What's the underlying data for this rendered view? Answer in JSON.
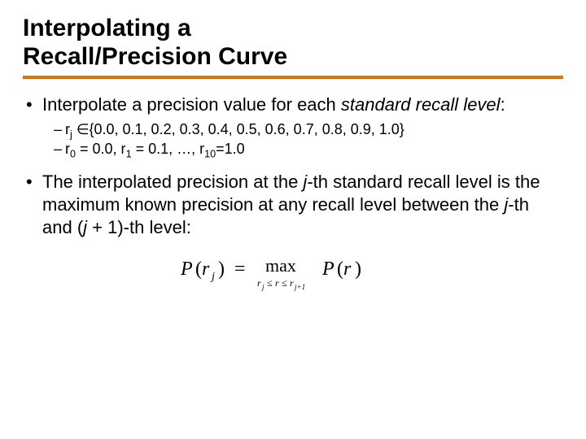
{
  "title_line1": "Interpolating a",
  "title_line2": "Recall/Precision Curve",
  "accent_color": "#e07a00",
  "bullet1_pre": "Interpolate a precision value for each ",
  "bullet1_em": "standard recall level",
  "bullet1_post": ":",
  "sub1_r": "r",
  "sub1_j": "j",
  "sub1_in": " ∈",
  "sub1_set": "{0.0, 0.1, 0.2, 0.3, 0.4, 0.5, 0.6, 0.7, 0.8, 0.9, 1.0}",
  "sub2_r0": "r",
  "sub2_0": "0",
  "sub2_eq0": " = 0.0, r",
  "sub2_1": "1",
  "sub2_mid": " = 0.1, …, r",
  "sub2_10": "10",
  "sub2_end": "=1.0",
  "bullet2_a": "The interpolated precision at the ",
  "bullet2_j": "j",
  "bullet2_b": "-th standard recall level is the maximum known precision at any recall level between the ",
  "bullet2_j2": "j",
  "bullet2_c": "-th and (",
  "bullet2_j3": "j",
  "bullet2_d": " + 1)-th level:",
  "formula": {
    "P": "P",
    "open": "(",
    "r": "r",
    "j": "j",
    "close": ")",
    "eq": "=",
    "max": "max",
    "cond_rj": "r",
    "cond_j": "j",
    "cond_le1": "≤",
    "cond_r": "r",
    "cond_le2": "≤",
    "cond_rj1": "r",
    "cond_j1": "j+1",
    "P2": "P",
    "open2": "(",
    "r2": "r",
    "close2": ")"
  }
}
